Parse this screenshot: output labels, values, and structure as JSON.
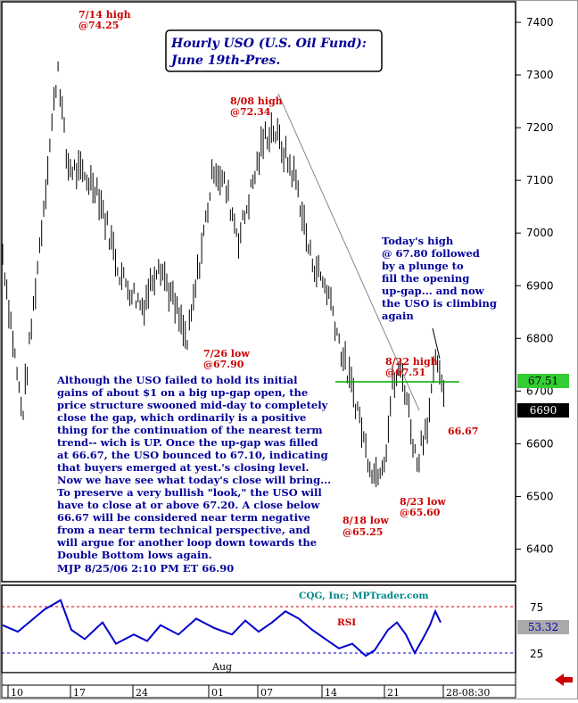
{
  "chart_data": {
    "type": "ohlc",
    "title": "Hourly USO (U.S. Oil Fund):",
    "subtitle": "June 19th-Pres.",
    "y_tick_labels": [
      "7400",
      "7300",
      "7200",
      "7100",
      "7000",
      "6900",
      "6800",
      "6700",
      "6600",
      "6500",
      "6400"
    ],
    "ylim": [
      6330,
      7440
    ],
    "x_tick_labels": [
      "10",
      "17",
      "24",
      "01",
      "07",
      "14",
      "21",
      "28-08:30"
    ],
    "month_label": "Aug",
    "price_badges": {
      "green": "67.51",
      "black": "6690"
    },
    "rsi": {
      "label": "RSI",
      "levels": [
        "75",
        "25"
      ],
      "value_badge": "53.32",
      "upper_line": 75,
      "lower_line": 25
    },
    "credit": "CQG, Inc; MPTrader.com",
    "annotations": {
      "a714": [
        "7/14 high",
        "@74.25"
      ],
      "a808": [
        "8/08 high",
        "@72.34"
      ],
      "a726": [
        "7/26 low",
        "@67.90"
      ],
      "a822": [
        "8/22 high",
        "@67.51"
      ],
      "a818": [
        "8/18 low",
        "@65.25"
      ],
      "a823": [
        "8/23 low",
        "@65.60"
      ],
      "a6667": [
        "66.67"
      ]
    },
    "today_note": [
      "Today's high",
      "@ 67.80 followed",
      "by a plunge to",
      "fill the opening",
      "up-gap... and now",
      "the USO is climbing",
      "again"
    ],
    "commentary": [
      "Although the USO failed to hold its initial",
      "gains of about $1 on a big up-gap open, the",
      "price structure swooned mid-day to completely",
      "close the gap, which ordinarily is a positive",
      "thing for the continuation of the nearest term",
      "trend-- wich is UP. Once the up-gap was filled",
      "at 66.67, the USO bounced to 67.10, indicating",
      "that buyers emerged at yest.'s closing level.",
      "Now we have see what today's close will bring...",
      "To preserve a very bullish \"look,\" the USO will",
      "have to close at or above 67.20. A close below",
      "66.67 will be considered near term negative",
      "from a near term technical perspective, and",
      "will argue for another loop down towards the",
      "Double Bottom lows again.",
      "MJP   8/25/06 2:10 PM ET  66.90"
    ],
    "anchors": {
      "x": [
        3,
        25,
        65,
        75,
        108,
        135,
        160,
        178,
        210,
        240,
        252,
        268,
        296,
        306,
        332,
        347,
        370,
        382,
        402,
        410,
        420,
        432,
        440,
        450,
        456,
        467,
        472,
        480,
        490,
        494,
        498
      ],
      "y": [
        6960,
        6650,
        7320,
        7130,
        7090,
        6920,
        6860,
        6950,
        6790,
        7130,
        7090,
        6990,
        7180,
        7200,
        7100,
        6960,
        6880,
        6780,
        6660,
        6590,
        6540,
        6580,
        6710,
        6740,
        6690,
        6560,
        6600,
        6650,
        6770,
        6700,
        6700
      ]
    },
    "rsi_anchors": {
      "x": [
        3,
        20,
        35,
        50,
        68,
        80,
        95,
        115,
        130,
        150,
        165,
        180,
        200,
        220,
        240,
        260,
        275,
        290,
        305,
        320,
        335,
        350,
        365,
        380,
        395,
        410,
        420,
        435,
        445,
        455,
        465,
        475,
        482,
        488,
        494
      ],
      "y": [
        55,
        48,
        60,
        72,
        82,
        50,
        40,
        58,
        35,
        45,
        38,
        55,
        45,
        62,
        52,
        45,
        60,
        48,
        58,
        70,
        62,
        50,
        40,
        30,
        35,
        22,
        28,
        50,
        58,
        45,
        25,
        42,
        55,
        70,
        58
      ]
    }
  }
}
